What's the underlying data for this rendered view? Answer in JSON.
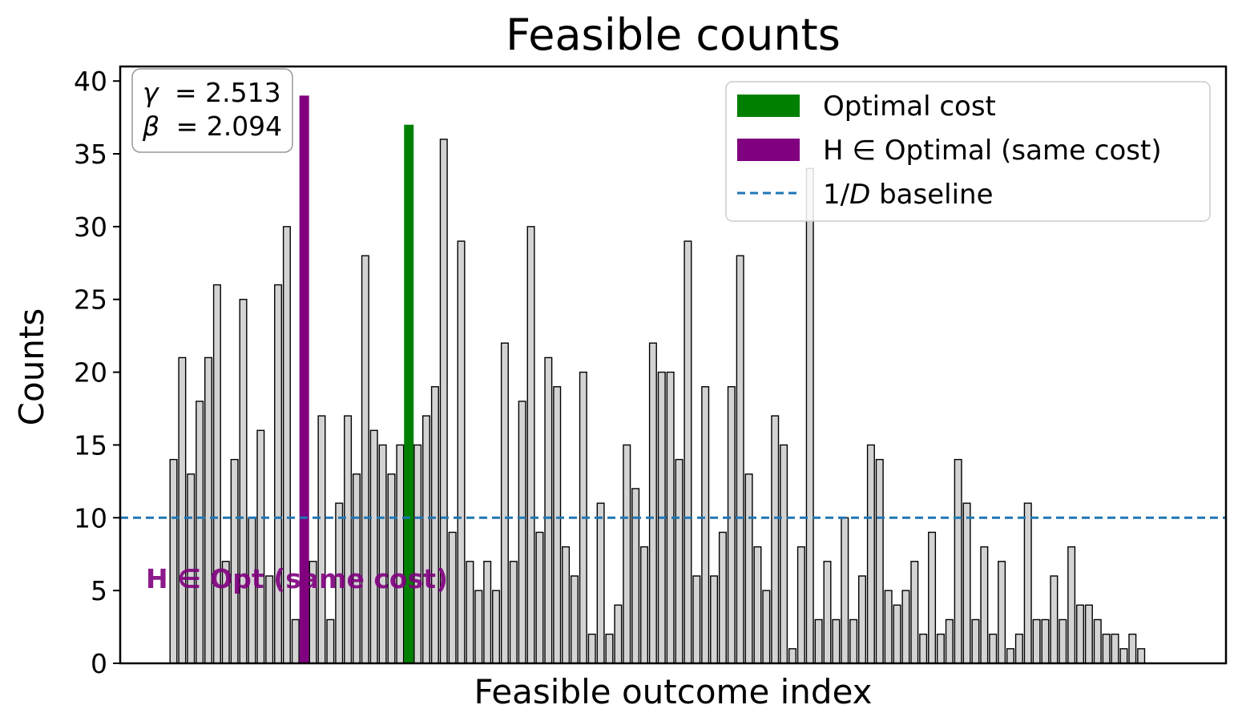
{
  "chart_data": {
    "type": "bar",
    "title": "Feasible counts",
    "xlabel": "Feasible outcome index",
    "ylabel": "Counts",
    "ylim": [
      0,
      41
    ],
    "yticks": [
      "0",
      "5",
      "10",
      "15",
      "20",
      "25",
      "30",
      "35",
      "40"
    ],
    "values": [
      14,
      21,
      13,
      18,
      21,
      26,
      7,
      14,
      25,
      10,
      16,
      6,
      26,
      30,
      3,
      39,
      7,
      17,
      3,
      11,
      17,
      13,
      28,
      16,
      15,
      13,
      15,
      37,
      15,
      17,
      19,
      36,
      9,
      29,
      7,
      5,
      7,
      5,
      22,
      7,
      18,
      30,
      9,
      21,
      19,
      8,
      6,
      20,
      2,
      11,
      2,
      4,
      15,
      12,
      8,
      22,
      20,
      20,
      14,
      29,
      6,
      19,
      6,
      9,
      19,
      28,
      13,
      8,
      5,
      17,
      15,
      1,
      8,
      34,
      3,
      7,
      3,
      10,
      3,
      6,
      15,
      14,
      5,
      4,
      5,
      7,
      2,
      9,
      2,
      3,
      14,
      11,
      3,
      8,
      2,
      7,
      1,
      2,
      11,
      3,
      3,
      6,
      3,
      8,
      4,
      4,
      3,
      2,
      2,
      1,
      2,
      1
    ],
    "highlights": {
      "optimal_index": 27,
      "same_cost_index": 15
    },
    "baseline": {
      "value": 10,
      "label": "1/D baseline"
    },
    "legend": {
      "position": "top-right",
      "entries": [
        {
          "label": "Optimal cost",
          "color": "#008000",
          "kind": "patch"
        },
        {
          "label": "H ∈ Optimal (same cost)",
          "color": "#800080",
          "kind": "patch"
        },
        {
          "label_prefix": "1/",
          "label_italic": "D",
          "label_suffix": " baseline",
          "color": "#1f77b4",
          "kind": "dashed"
        }
      ]
    },
    "params": {
      "gamma_symbol": "γ",
      "gamma_value": "= 2.513",
      "beta_symbol": "β",
      "beta_value": "= 2.094"
    },
    "annotation": {
      "text": "H ∈ Opt (same cost)",
      "color": "#800080"
    },
    "colors": {
      "bar_fill": "#d3d3d3",
      "bar_edge": "#000000",
      "optimal": "#008000",
      "same_cost": "#800080",
      "baseline": "#1f77b4"
    }
  }
}
